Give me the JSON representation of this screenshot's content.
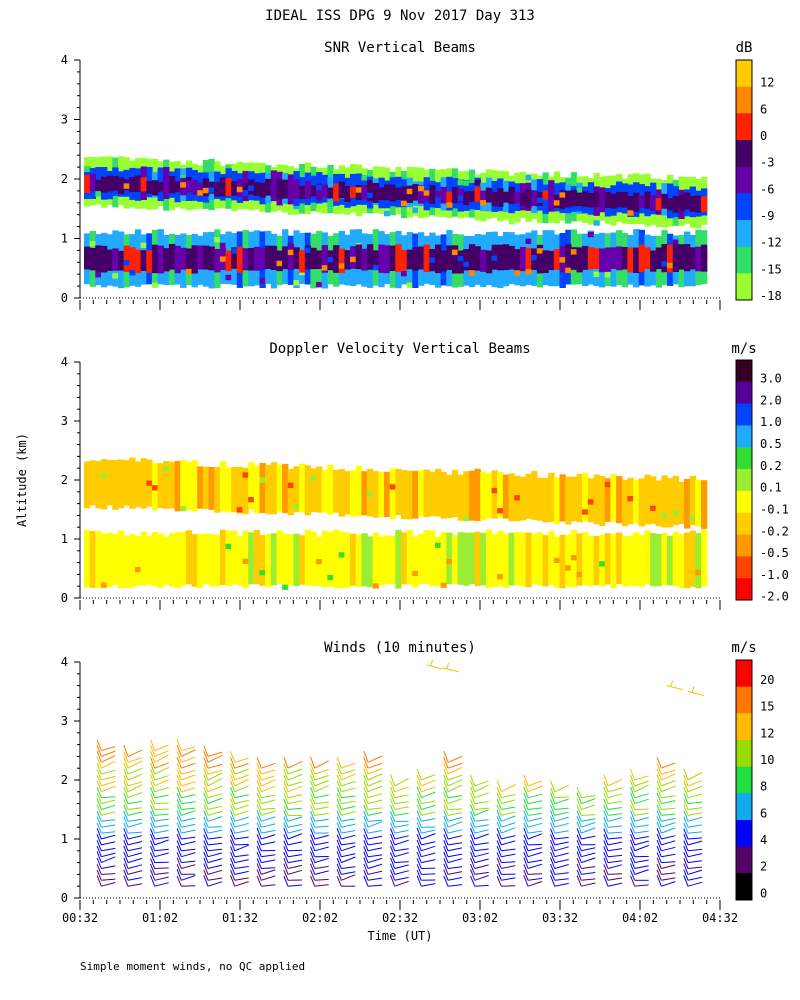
{
  "title": "IDEAL ISS DPG   9 Nov 2017 Day 313",
  "footnote": "Simple moment winds, no QC applied",
  "ylabel": "Altitude (km)",
  "xlabel": "Time (UT)",
  "y_ticks": [
    0,
    1,
    2,
    3,
    4
  ],
  "x_ticks": [
    "00:32",
    "01:02",
    "01:32",
    "02:02",
    "02:32",
    "03:02",
    "03:32",
    "04:02",
    "04:32"
  ],
  "chart_data": [
    {
      "type": "heatmap",
      "title": "SNR Vertical Beams",
      "ylabel": "Altitude (km)",
      "ylim": [
        0,
        4
      ],
      "xlim_minutes": [
        0,
        240
      ],
      "colorbar": {
        "unit": "dB",
        "labels": [
          "12",
          "6",
          "0",
          "-3",
          "-6",
          "-9",
          "-12",
          "-15",
          "-18"
        ],
        "colors": [
          "#ffcc00",
          "#ff8800",
          "#ff2200",
          "#440066",
          "#6600aa",
          "#0044ff",
          "#22aaff",
          "#33dd66",
          "#99ff33"
        ]
      },
      "layers": [
        {
          "level": "-18",
          "alt_bottom": 1.55,
          "alt_top": 2.35
        },
        {
          "level": "-9",
          "alt_bottom": 1.7,
          "alt_top": 2.2
        },
        {
          "level": "-3",
          "alt_bottom": 1.8,
          "alt_top": 2.05
        },
        {
          "level": "-12",
          "alt_bottom": 0.2,
          "alt_top": 1.1
        },
        {
          "level": "-3",
          "alt_bottom": 0.45,
          "alt_top": 0.85
        }
      ]
    },
    {
      "type": "heatmap",
      "title": "Doppler Velocity Vertical Beams",
      "ylabel": "Altitude (km)",
      "ylim": [
        0,
        4
      ],
      "xlim_minutes": [
        0,
        240
      ],
      "colorbar": {
        "unit": "m/s",
        "labels": [
          "3.0",
          "2.0",
          "1.0",
          "0.5",
          "0.2",
          "0.1",
          "-0.1",
          "-0.2",
          "-0.5",
          "-1.0",
          "-2.0"
        ],
        "colors": [
          "#330022",
          "#550099",
          "#0044ff",
          "#22aaff",
          "#33dd33",
          "#99ee33",
          "#ffff00",
          "#ffcc00",
          "#ff9900",
          "#ff4400",
          "#ff0000"
        ]
      },
      "layers": [
        {
          "level": "-0.1",
          "alt_bottom": 0.2,
          "alt_top": 1.1
        },
        {
          "level": "-0.2",
          "alt_bottom": 1.55,
          "alt_top": 2.35
        }
      ]
    },
    {
      "type": "scatter",
      "subtype": "wind_barbs",
      "title": "Winds (10 minutes)",
      "ylabel": "Altitude (km)",
      "ylim": [
        0,
        4
      ],
      "xlim_minutes": [
        0,
        240
      ],
      "colorbar": {
        "unit": "m/s",
        "labels": [
          "20",
          "15",
          "12",
          "10",
          "8",
          "6",
          "4",
          "2",
          "0"
        ],
        "colors": [
          "#ff0000",
          "#ff7700",
          "#ffbb00",
          "#99dd00",
          "#22dd44",
          "#11aaee",
          "#0000ff",
          "#550066",
          "#000000"
        ]
      },
      "times_minutes": [
        8,
        18,
        28,
        38,
        48,
        58,
        68,
        78,
        88,
        98,
        108,
        118,
        128,
        138,
        148,
        158,
        168,
        178,
        188,
        198,
        208,
        218,
        228
      ],
      "profiles_top_km": [
        2.55,
        2.5,
        2.6,
        2.55,
        2.5,
        2.35,
        2.3,
        2.3,
        2.3,
        2.25,
        2.4,
        2.0,
        2.05,
        2.4,
        2.0,
        1.9,
        1.95,
        1.9,
        1.8,
        1.95,
        2.1,
        2.25,
        2.1
      ]
    }
  ]
}
